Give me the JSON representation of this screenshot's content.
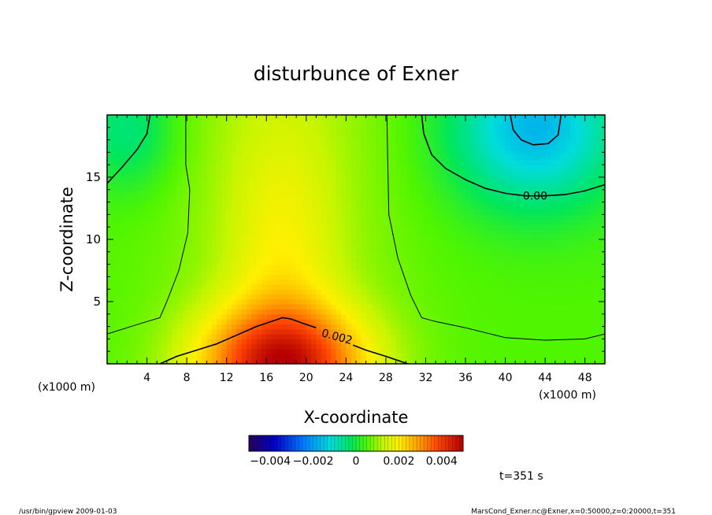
{
  "chart_data": {
    "type": "heatmap",
    "title": "disturbunce of Exner",
    "xlabel": "X-coordinate",
    "ylabel": "Z-coordinate",
    "x_unit": "(x1000 m)",
    "y_unit": "(x1000 m)",
    "xlim": [
      0,
      50
    ],
    "ylim": [
      0,
      20
    ],
    "x_ticks": [
      4,
      8,
      12,
      16,
      20,
      24,
      28,
      32,
      36,
      40,
      44,
      48
    ],
    "y_ticks": [
      5,
      10,
      15
    ],
    "colorbar": {
      "range": [
        -0.005,
        0.005
      ],
      "ticks": [
        {
          "value": -0.004,
          "label": "−0.004"
        },
        {
          "value": -0.002,
          "label": "−0.002"
        },
        {
          "value": 0,
          "label": "0"
        },
        {
          "value": 0.002,
          "label": "0.002"
        },
        {
          "value": 0.004,
          "label": "0.004"
        }
      ]
    },
    "contours": [
      {
        "level": 0.0,
        "label": "0.00",
        "label_at": [
          43,
          13.5
        ],
        "label_rotation": 0,
        "lines": [
          [
            [
              0,
              14.5
            ],
            [
              1.5,
              15.8
            ],
            [
              3,
              17.2
            ],
            [
              4,
              18.5
            ],
            [
              4.3,
              20
            ]
          ],
          [
            [
              31.6,
              20
            ],
            [
              31.8,
              18.5
            ],
            [
              32.6,
              16.8
            ],
            [
              34,
              15.7
            ],
            [
              36,
              14.8
            ],
            [
              38,
              14.1
            ],
            [
              40,
              13.7
            ],
            [
              42,
              13.5
            ],
            [
              44,
              13.5
            ],
            [
              46,
              13.6
            ],
            [
              48,
              13.9
            ],
            [
              50,
              14.4
            ]
          ],
          [
            [
              40.5,
              20
            ],
            [
              40.8,
              18.8
            ],
            [
              41.6,
              18.0
            ],
            [
              42.8,
              17.6
            ],
            [
              44.3,
              17.7
            ],
            [
              45.3,
              18.4
            ],
            [
              45.6,
              20
            ]
          ]
        ]
      },
      {
        "level": 0.001,
        "label": "",
        "lines": [
          [
            [
              0,
              2.4
            ],
            [
              2,
              2.9
            ],
            [
              4,
              3.4
            ],
            [
              5.3,
              3.7
            ],
            [
              6,
              5.0
            ],
            [
              7.2,
              7.5
            ],
            [
              8.1,
              10.5
            ],
            [
              8.3,
              14
            ],
            [
              7.9,
              16
            ],
            [
              7.9,
              20
            ]
          ],
          [
            [
              28.1,
              20
            ],
            [
              28.2,
              16
            ],
            [
              28.3,
              12
            ],
            [
              29.2,
              8.5
            ],
            [
              30.5,
              5.5
            ],
            [
              31.6,
              3.7
            ],
            [
              33,
              3.4
            ],
            [
              36,
              2.9
            ],
            [
              40,
              2.1
            ],
            [
              44,
              1.9
            ],
            [
              48,
              2.0
            ],
            [
              50,
              2.4
            ]
          ]
        ]
      },
      {
        "level": 0.002,
        "label": "0.002",
        "label_at": [
          23.1,
          2.2
        ],
        "label_rotation": 15,
        "lines": [
          [
            [
              5.3,
              0
            ],
            [
              7,
              0.6
            ],
            [
              9,
              1.1
            ],
            [
              11,
              1.6
            ],
            [
              13,
              2.3
            ],
            [
              15,
              3.0
            ],
            [
              16.5,
              3.4
            ],
            [
              17.6,
              3.7
            ],
            [
              18.5,
              3.6
            ],
            [
              19.5,
              3.3
            ],
            [
              21,
              2.9
            ]
          ],
          [
            [
              24.7,
              1.5
            ],
            [
              26,
              1.1
            ],
            [
              28,
              0.6
            ],
            [
              30.2,
              0
            ]
          ]
        ]
      }
    ],
    "field_peaks": [
      {
        "x": 17.6,
        "y": 0.0,
        "value": 0.0035,
        "sx": 6.0,
        "sy": 3.2
      },
      {
        "x": 17.6,
        "y": 8.0,
        "value": 0.0009,
        "sx": 4.0,
        "sy": 8.0
      },
      {
        "x": 17.6,
        "y": 20.0,
        "value": 0.0006,
        "sx": 8.0,
        "sy": 30.0
      },
      {
        "x": 2.0,
        "y": 19.0,
        "value": -0.001,
        "sx": 3.5,
        "sy": 3.5
      },
      {
        "x": 43.0,
        "y": 19.0,
        "value": -0.0022,
        "sx": 6.0,
        "sy": 4.5
      }
    ],
    "field_base": 0.0005
  },
  "annotations": {
    "time": "t=351 s",
    "footer_left": "/usr/bin/gpview   2009-01-03",
    "footer_right": "MarsCond_Exner.nc@Exner,x=0:50000,z=0:20000,t=351"
  }
}
